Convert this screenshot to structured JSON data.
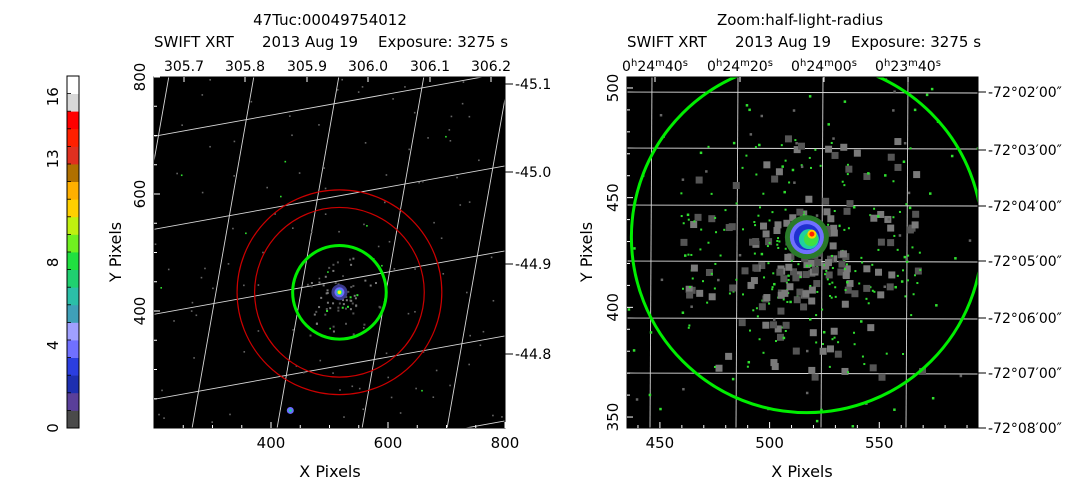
{
  "colorbar": {
    "ticks": [
      "0",
      "4",
      "8",
      "13",
      "16"
    ],
    "colors": [
      "#4a4a4a",
      "#5a3f9a",
      "#1e2fb0",
      "#2b3ee0",
      "#7070ff",
      "#a0a0ff",
      "#3fa0b8",
      "#2bbfa8",
      "#20d070",
      "#20e040",
      "#70f020",
      "#c0f010",
      "#ffd000",
      "#ffb000",
      "#b07000",
      "#e03020",
      "#ff2000",
      "#ff0000",
      "#d8d8d8",
      "#ffffff"
    ]
  },
  "chart_data": [
    {
      "type": "scatter",
      "title": "47Tuc:00049754012",
      "subtitle_parts": [
        "SWIFT XRT",
        "2013 Aug 19",
        "Exposure: 3275 s"
      ],
      "xlabel": "X Pixels",
      "ylabel": "Y Pixels",
      "xlim": [
        200,
        800
      ],
      "ylim": [
        200,
        800
      ],
      "x_ticks": [
        "400",
        "600",
        "800"
      ],
      "y_ticks": [
        "400",
        "600",
        "800"
      ],
      "top_ticks": [
        "305.7",
        "305.8",
        "305.9",
        "306.0",
        "306.1",
        "306.2"
      ],
      "right_ticks": [
        "-45.1",
        "-45.0",
        "-44.9",
        "-44.8"
      ],
      "source_center": [
        517,
        432
      ],
      "circles": [
        {
          "color": "#00ee00",
          "r": 80
        },
        {
          "color": "#cc0000",
          "r": 145
        },
        {
          "color": "#cc0000",
          "r": 175
        }
      ],
      "secondary_source": [
        433,
        230
      ]
    },
    {
      "type": "scatter",
      "title": "Zoom:half-light-radius",
      "subtitle_parts": [
        "SWIFT XRT",
        "2013 Aug 19",
        "Exposure: 3275 s"
      ],
      "xlabel": "X Pixels",
      "ylabel": "Y Pixels",
      "xlim": [
        435,
        595
      ],
      "ylim": [
        345,
        505
      ],
      "x_ticks": [
        "450",
        "500",
        "550"
      ],
      "y_ticks": [
        "350",
        "400",
        "450",
        "500"
      ],
      "top_ticks": [
        "0h24m40s",
        "0h24m20s",
        "0h24m00s",
        "0h23m40s"
      ],
      "right_ticks": [
        "-72°02′00″",
        "-72°03′00″",
        "-72°04′00″",
        "-72°05′00″",
        "-72°06′00″",
        "-72°07′00″",
        "-72°08′00″"
      ],
      "source_center": [
        517,
        432
      ],
      "circles": [
        {
          "color": "#00ee00",
          "r": 80
        }
      ]
    }
  ]
}
